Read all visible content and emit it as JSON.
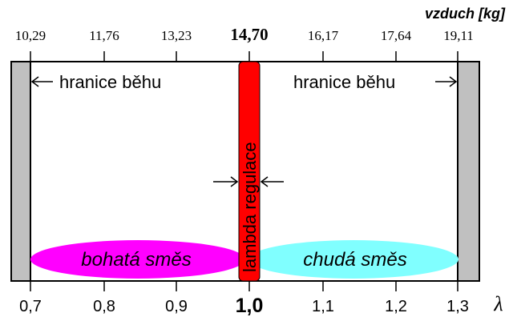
{
  "top_axis": {
    "title": "vzduch [kg]",
    "ticks": [
      "10,29",
      "11,76",
      "13,23",
      "14,70",
      "16,17",
      "17,64",
      "19,11"
    ],
    "highlight_index": 3
  },
  "bottom_axis": {
    "symbol": "λ",
    "ticks": [
      "0,7",
      "0,8",
      "0,9",
      "1,0",
      "1,1",
      "1,2",
      "1,3"
    ],
    "highlight_index": 3
  },
  "labels": {
    "limit_left": "hranice běhu",
    "limit_right": "hranice běhu",
    "lambda_regulation": "lambda regulace",
    "rich_mixture": "bohatá směs",
    "lean_mixture": "chudá směs"
  },
  "colors": {
    "gray_zone": "#c0c0c0",
    "lambda_band": "#ff0000",
    "rich_ellipse": "#ff00ff",
    "lean_ellipse": "#80ffff"
  }
}
